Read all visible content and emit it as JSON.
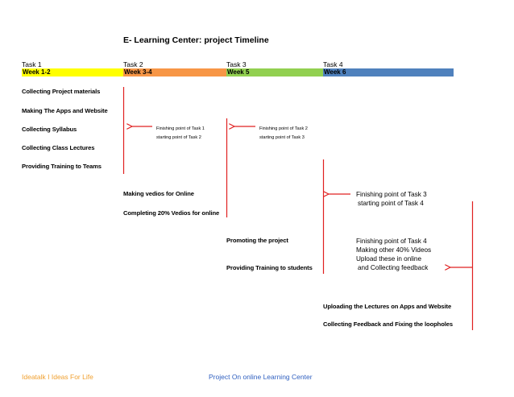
{
  "title": "E- Learning Center: project Timeline",
  "tasks": [
    "Task 1",
    "Task 2",
    "Task 3",
    "Task 4"
  ],
  "weeks": [
    {
      "label": "Week 1-2",
      "color": "#ffff00"
    },
    {
      "label": "Week 3-4",
      "color": "#f79646"
    },
    {
      "label": "Week 5",
      "color": "#92d050"
    },
    {
      "label": "Week 6",
      "color": "#4f81bd"
    }
  ],
  "task1_items": [
    "Collecting Project materials",
    "Making The Apps and Website",
    "Collecting Syllabus",
    "Collecting Class Lectures",
    "Providing Training to Teams"
  ],
  "task2_items": [
    "Making vedios for Online",
    "Completing 20% Vedios for online"
  ],
  "task3_items": [
    "Promoting the project",
    "Providing Training to students"
  ],
  "task4_items": [
    "Uploading the Lectures on Apps and Website",
    "Collecting Feedback and Fixing the loopholes"
  ],
  "notes": {
    "n1_line1": "Finishing point of Task 1",
    "n1_line2": "starting point of Task 2",
    "n2_line1": "Finishing point of Task 2",
    "n2_line2": "starting point of Task 3",
    "n3_line1": "Finishing point of Task 3",
    "n3_line2": "starting point of Task 4",
    "n4_line1": "Finishing point of Task 4",
    "n4_line2": "Making other 40% Videos",
    "n4_line3": "Upload these in online",
    "n4_line4": "and Collecting feedback"
  },
  "footer": {
    "left": "Ideatalk I Ideas For Life",
    "center": "Project On online Learning Center",
    "color": "#f0a030",
    "center_color": "#3060c0"
  },
  "arrow_color": "#e02020"
}
